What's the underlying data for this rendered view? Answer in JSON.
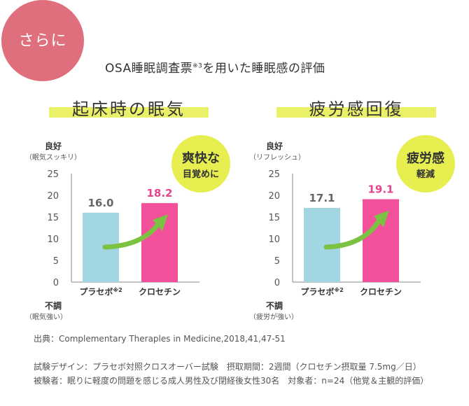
{
  "badge": {
    "text": "さらに"
  },
  "survey_title": {
    "text": "OSA睡眠調査票",
    "note": "※3",
    "text2": "を用いた睡眠感の評価"
  },
  "chart_data": [
    {
      "type": "bar",
      "title": "起床時の眠気",
      "y_top_label": "良好",
      "y_top_sub": "（眠気スッキリ）",
      "y_bottom_label": "不調",
      "y_bottom_sub": "（眠気強い）",
      "ylim": [
        0,
        25
      ],
      "yticks": [
        0,
        5,
        10,
        15,
        20,
        25
      ],
      "categories": [
        "プラセボ",
        "クロセチン"
      ],
      "category_notes": [
        "※2",
        ""
      ],
      "values": [
        16.0,
        18.2
      ],
      "value_labels": [
        "16.0",
        "18.2"
      ],
      "colors": [
        "#a3d6e3",
        "#f2509a"
      ],
      "callout": {
        "line1": "爽快な",
        "line2": "目覚めに"
      }
    },
    {
      "type": "bar",
      "title": "疲労感回復",
      "y_top_label": "良好",
      "y_top_sub": "（リフレッシュ）",
      "y_bottom_label": "不調",
      "y_bottom_sub": "（疲労が強い）",
      "ylim": [
        0,
        25
      ],
      "yticks": [
        0,
        5,
        10,
        15,
        20,
        25
      ],
      "categories": [
        "プラセボ",
        "クロセチン"
      ],
      "category_notes": [
        "※2",
        ""
      ],
      "values": [
        17.1,
        19.1
      ],
      "value_labels": [
        "17.1",
        "19.1"
      ],
      "colors": [
        "#a3d6e3",
        "#f2509a"
      ],
      "callout": {
        "line1": "疲労感",
        "line2": "軽減"
      }
    }
  ],
  "source": "出典：Complementary Theraples in Medicine,2018,41,47-51",
  "notes": {
    "line1": "試験デザイン：プラセボ対照クロスオーバー試験　摂取期間：2週間（クロセチン摂取量 7.5mg／日）",
    "line2": "被験者：眠りに軽度の問題を感じる成人男性及び閉経後女性30名　対象者：n=24（他覚＆主観的評価）"
  },
  "colors": {
    "badge": "#e06f7e",
    "highlight": "#eaf168",
    "bubble": "#e6ef4f",
    "arrow": "#7bc142",
    "value_pink": "#e8418d"
  }
}
